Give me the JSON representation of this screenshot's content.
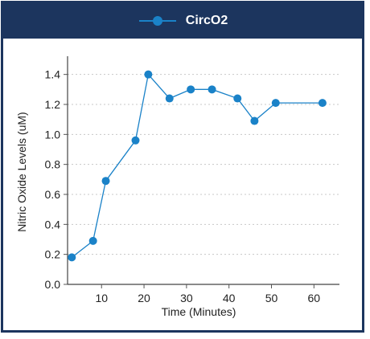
{
  "chart_data": {
    "type": "line",
    "title": "",
    "xlabel": "Time (Minutes)",
    "ylabel": "Nitric Oxide Levels (uM)",
    "xlim": [
      2,
      66
    ],
    "ylim": [
      0,
      1.5
    ],
    "xticks": [
      10,
      20,
      30,
      40,
      50,
      60
    ],
    "yticks": [
      0.0,
      0.2,
      0.4,
      0.6,
      0.8,
      1.0,
      1.2,
      1.4
    ],
    "ytick_labels": [
      "0.0",
      "0.2",
      "0.4",
      "0.6",
      "0.8",
      "1.0",
      "1.2",
      "1.4"
    ],
    "grid": "horizontal-dotted",
    "legend": "top",
    "series": [
      {
        "name": "CircO2",
        "color": "#1a82c8",
        "x": [
          3,
          8,
          11,
          18,
          21,
          26,
          31,
          36,
          42,
          46,
          51,
          62
        ],
        "y": [
          0.18,
          0.29,
          0.69,
          0.96,
          1.4,
          1.24,
          1.3,
          1.3,
          1.24,
          1.09,
          1.21,
          1.21
        ]
      }
    ]
  }
}
